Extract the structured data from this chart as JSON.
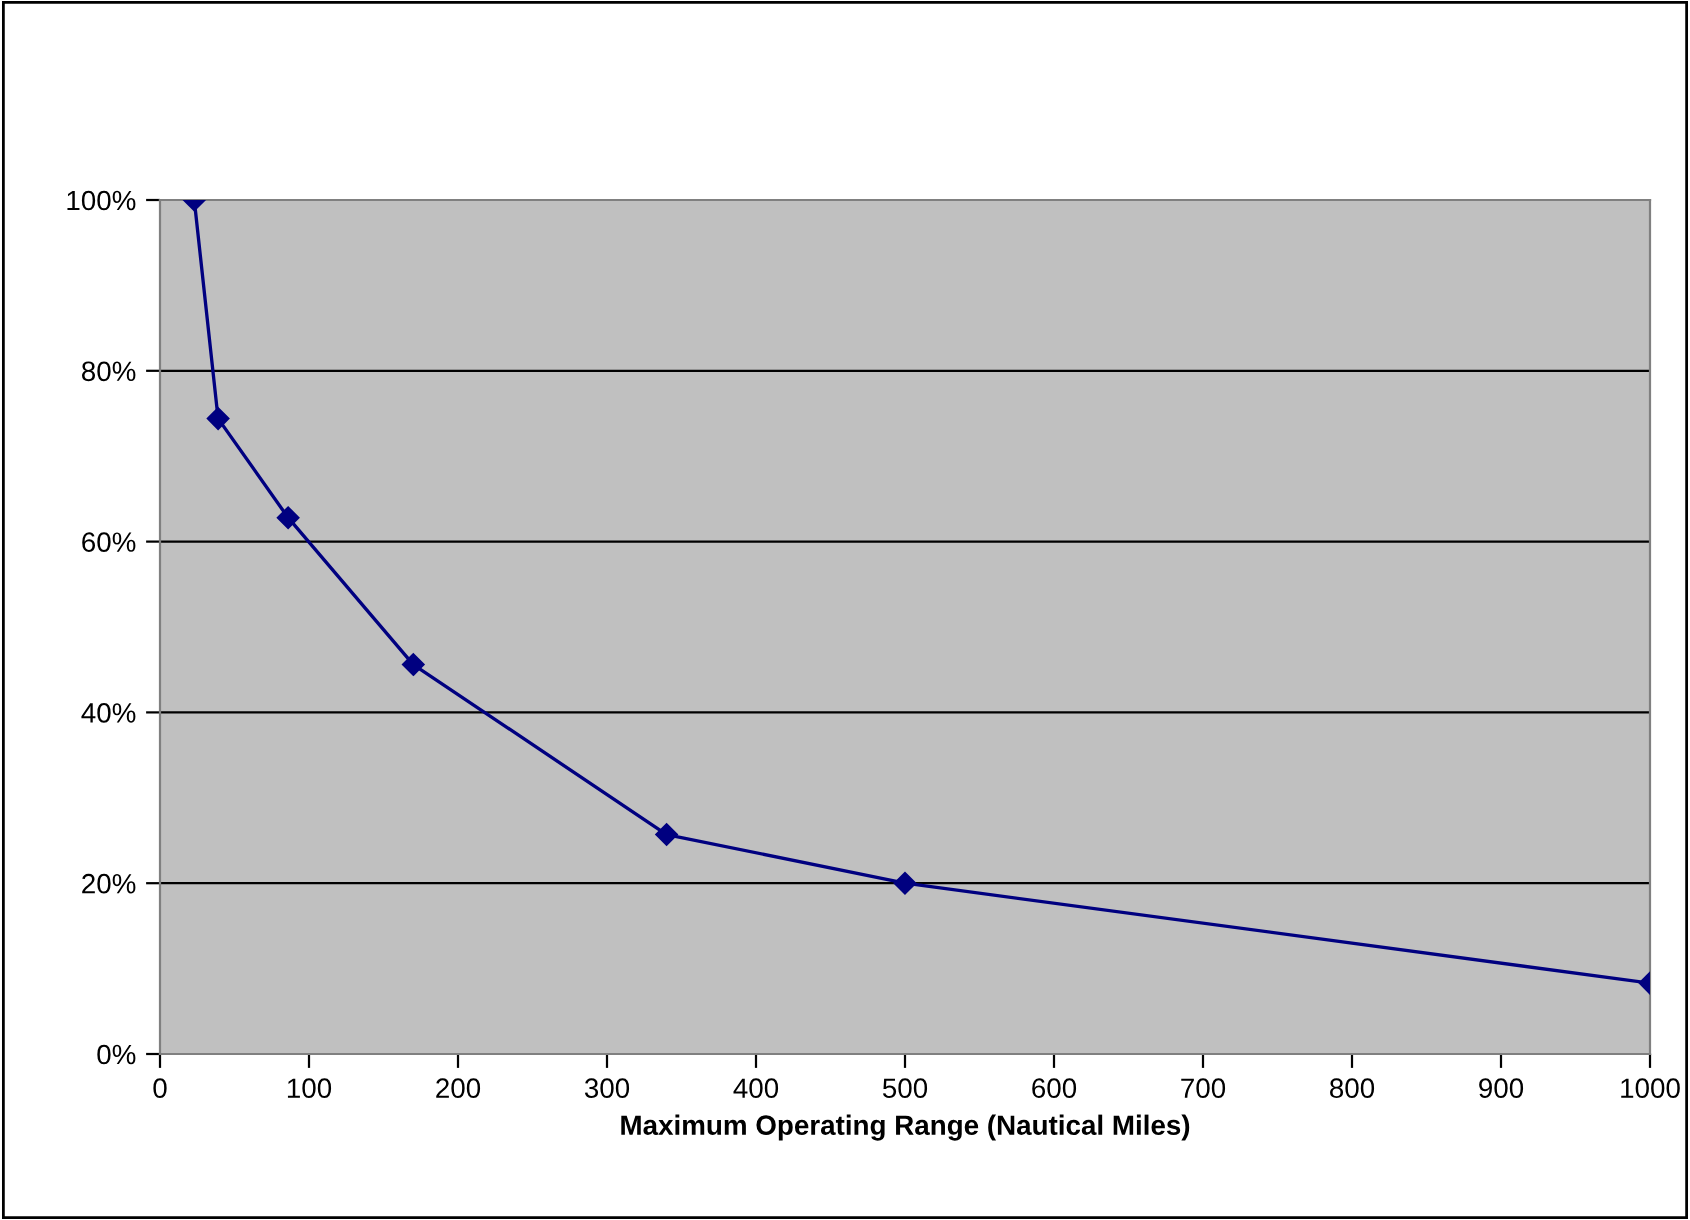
{
  "chart_data": {
    "type": "line",
    "xlabel": "Maximum Operating Range (Nautical Miles)",
    "series": [
      {
        "color": "#000080",
        "x": [
          23,
          39,
          86,
          170,
          340,
          500,
          1000
        ],
        "values": [
          100,
          74.4,
          62.8,
          45.6,
          25.7,
          20,
          8.3
        ]
      }
    ],
    "xlim": [
      0,
      1000
    ],
    "xticks": [
      0,
      100,
      200,
      300,
      400,
      500,
      600,
      700,
      800,
      900,
      1000
    ],
    "ylim": [
      0,
      100
    ],
    "yticks": [
      {
        "value": 0,
        "label": "0%"
      },
      {
        "value": 20,
        "label": "20%"
      },
      {
        "value": 40,
        "label": "40%"
      },
      {
        "value": 60,
        "label": "60%"
      },
      {
        "value": 80,
        "label": "80%"
      },
      {
        "value": 100,
        "label": "100%"
      }
    ],
    "grid": "y",
    "marker": "diamond",
    "line_style": "solid",
    "legend": false
  }
}
